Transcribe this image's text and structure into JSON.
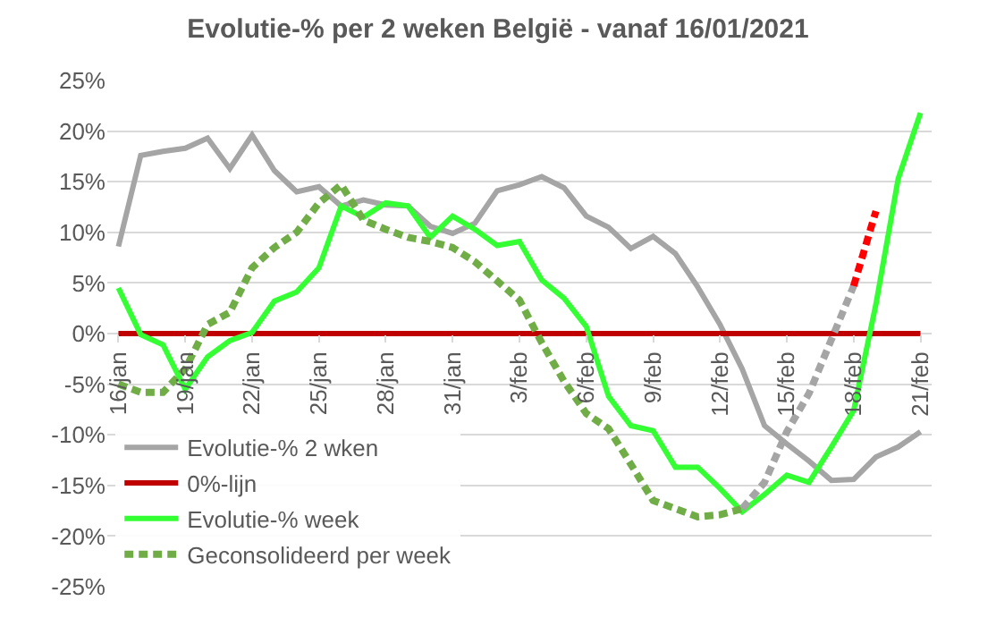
{
  "chart_data": {
    "type": "line",
    "title": "Evolutie-% per 2 weken België - vanaf 16/01/2021",
    "categories": [
      "16/jan",
      null,
      null,
      "19/jan",
      null,
      null,
      "22/jan",
      null,
      null,
      "25/jan",
      null,
      null,
      "28/jan",
      null,
      null,
      "31/jan",
      null,
      null,
      "3/feb",
      null,
      null,
      "6/feb",
      null,
      null,
      "9/feb",
      null,
      null,
      "12/feb",
      null,
      null,
      "15/feb",
      null,
      null,
      "18/feb",
      null,
      null,
      "21/feb"
    ],
    "series": [
      {
        "name": "Evolutie-% 2 wken",
        "color": "#a5a5a5",
        "line_style": "solid",
        "values": [
          8.6,
          17.6,
          18.0,
          18.3,
          19.3,
          16.3,
          19.6,
          16.1,
          14.0,
          14.5,
          12.6,
          13.2,
          12.7,
          12.6,
          10.6,
          9.9,
          10.9,
          14.1,
          14.7,
          15.5,
          14.4,
          11.6,
          10.5,
          8.4,
          9.6,
          7.9,
          4.6,
          0.9,
          -3.5,
          -9.1,
          -10.9,
          -12.6,
          -14.5,
          -14.4,
          -12.2,
          -11.2,
          -9.7
        ]
      },
      {
        "name": "0%-lijn",
        "color": "#c00000",
        "line_style": "solid",
        "values": [
          0,
          0,
          0,
          0,
          0,
          0,
          0,
          0,
          0,
          0,
          0,
          0,
          0,
          0,
          0,
          0,
          0,
          0,
          0,
          0,
          0,
          0,
          0,
          0,
          0,
          0,
          0,
          0,
          0,
          0,
          0,
          0,
          0,
          0,
          0,
          0,
          0
        ]
      },
      {
        "name": "Evolutie-% week",
        "color": "#33ff33",
        "line_style": "solid",
        "values": [
          4.5,
          -0.1,
          -1.1,
          -5.5,
          -2.3,
          -0.7,
          0.1,
          3.2,
          4.1,
          6.5,
          12.6,
          11.5,
          12.9,
          12.6,
          9.5,
          11.6,
          10.3,
          8.7,
          9.1,
          5.3,
          3.5,
          0.7,
          -6.2,
          -9.1,
          -9.6,
          -13.2,
          -13.2,
          -15.3,
          -17.6,
          -15.9,
          -14.0,
          -14.7,
          -11.2,
          -7.6,
          2.9,
          15.3,
          21.8
        ]
      },
      {
        "name": "Geconsolideerd per week",
        "color": "#70ad47",
        "line_style": "dashed",
        "values": [
          -5.0,
          -5.8,
          -5.8,
          -3.5,
          0.9,
          2.1,
          6.5,
          8.5,
          10.0,
          12.9,
          14.7,
          11.2,
          10.3,
          9.5,
          9.1,
          8.5,
          7.1,
          5.2,
          3.3,
          -0.9,
          -4.7,
          -7.9,
          -9.4,
          -12.9,
          -16.5,
          -17.3,
          -18.1,
          -17.9,
          -17.3,
          null,
          null,
          null,
          null,
          null,
          null,
          null,
          null
        ]
      },
      {
        "color": "#a5a5a5",
        "line_style": "dashed",
        "values": [
          null,
          null,
          null,
          null,
          null,
          null,
          null,
          null,
          null,
          null,
          null,
          null,
          null,
          null,
          null,
          null,
          null,
          null,
          null,
          null,
          null,
          null,
          null,
          null,
          null,
          null,
          null,
          null,
          -17.3,
          -14.7,
          -9.7,
          -5.9,
          -0.6,
          4.7,
          null,
          null,
          null
        ]
      },
      {
        "color": "#ff0000",
        "line_style": "dashed",
        "values": [
          null,
          null,
          null,
          null,
          null,
          null,
          null,
          null,
          null,
          null,
          null,
          null,
          null,
          null,
          null,
          null,
          null,
          null,
          null,
          null,
          null,
          null,
          null,
          null,
          null,
          null,
          null,
          null,
          null,
          null,
          null,
          null,
          null,
          4.7,
          12.1,
          null,
          null
        ]
      }
    ],
    "ylim": [
      -25,
      25
    ],
    "yticks": [
      {
        "value": -25,
        "label": "-25%"
      },
      {
        "value": -20,
        "label": "-20%"
      },
      {
        "value": -15,
        "label": "-15%"
      },
      {
        "value": -10,
        "label": "-10%"
      },
      {
        "value": -5,
        "label": "-5%"
      },
      {
        "value": 0,
        "label": "0%"
      },
      {
        "value": 5,
        "label": "5%"
      },
      {
        "value": 10,
        "label": "10%"
      },
      {
        "value": 15,
        "label": "15%"
      },
      {
        "value": 20,
        "label": "20%"
      },
      {
        "value": 25,
        "label": "25%"
      }
    ],
    "grid": "y",
    "legend": "bottom left",
    "marker": "none"
  }
}
